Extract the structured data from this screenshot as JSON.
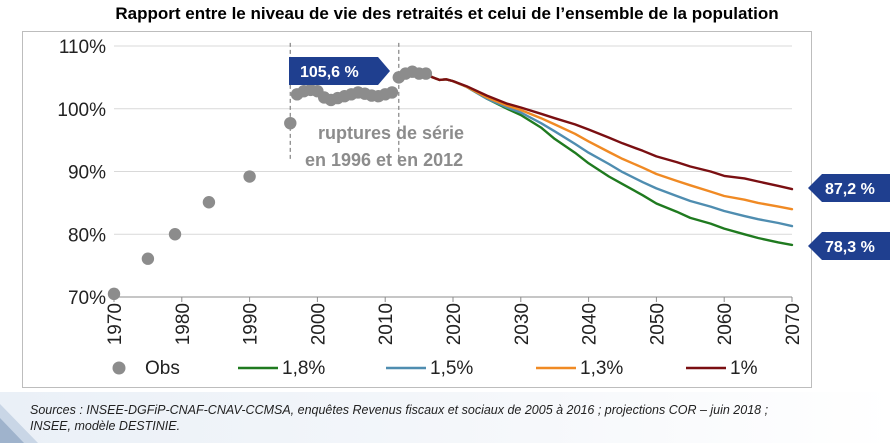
{
  "title": "Rapport entre le niveau de vie des retraités et celui de l’ensemble de la population",
  "source": "Sources : INSEE-DGFiP-CNAF-CNAV-CCMSA, enquêtes Revenus fiscaux et sociaux de 2005 à 2016 ; projections COR – juin 2018 ; INSEE, modèle DESTINIE.",
  "colors": {
    "obs": "#8c8c8c",
    "s18": "#1f7a1f",
    "s15": "#4f8db0",
    "s13": "#f08a24",
    "s1": "#7a0f12",
    "callout": "#1f3f8f"
  },
  "chart_data": {
    "type": "line",
    "title": "Rapport entre le niveau de vie des retraités et celui de l’ensemble de la population",
    "xlim": [
      1970,
      2070
    ],
    "ylim": [
      70,
      110
    ],
    "y_ticks": [
      70,
      80,
      90,
      100,
      110
    ],
    "y_tick_labels": [
      "70%",
      "80%",
      "90%",
      "100%",
      "110%"
    ],
    "x_ticks": [
      1970,
      1980,
      1990,
      2000,
      2010,
      2020,
      2030,
      2040,
      2050,
      2060,
      2070
    ],
    "x_tick_labels": [
      "1970",
      "1980",
      "1990",
      "2000",
      "2010",
      "2020",
      "2030",
      "2040",
      "2050",
      "2060",
      "2070"
    ],
    "grid": "horizontal",
    "legend_position": "bottom",
    "obs": {
      "name": "Obs",
      "x": [
        1970,
        1975,
        1979,
        1984,
        1990,
        1996,
        1997,
        1998,
        1999,
        2000,
        2001,
        2002,
        2003,
        2004,
        2005,
        2006,
        2007,
        2008,
        2009,
        2010,
        2011,
        2012,
        2013,
        2014,
        2015,
        2016
      ],
      "y": [
        70.5,
        76.1,
        80.0,
        85.1,
        89.2,
        97.7,
        102.3,
        102.8,
        103.0,
        102.8,
        101.8,
        101.4,
        101.7,
        102.0,
        102.3,
        102.6,
        102.4,
        102.1,
        102.0,
        102.3,
        102.6,
        105.0,
        105.6,
        105.9,
        105.6,
        105.6
      ]
    },
    "series": [
      {
        "name": "1,8%",
        "key": "s18",
        "x": [
          2016,
          2017,
          2018,
          2019,
          2020,
          2022,
          2025,
          2028,
          2030,
          2033,
          2035,
          2038,
          2040,
          2043,
          2045,
          2048,
          2050,
          2053,
          2055,
          2058,
          2060,
          2063,
          2065,
          2068,
          2070
        ],
        "y": [
          105.6,
          105.0,
          104.6,
          104.7,
          104.4,
          103.5,
          101.6,
          100.0,
          99.0,
          97.0,
          95.2,
          93.0,
          91.3,
          89.2,
          88.0,
          86.2,
          84.9,
          83.6,
          82.6,
          81.7,
          80.9,
          80.0,
          79.4,
          78.7,
          78.3
        ]
      },
      {
        "name": "1,5%",
        "key": "s15",
        "x": [
          2016,
          2017,
          2018,
          2019,
          2020,
          2022,
          2025,
          2028,
          2030,
          2033,
          2035,
          2038,
          2040,
          2043,
          2045,
          2048,
          2050,
          2053,
          2055,
          2058,
          2060,
          2063,
          2065,
          2068,
          2070
        ],
        "y": [
          105.6,
          105.0,
          104.6,
          104.7,
          104.4,
          103.5,
          101.6,
          100.2,
          99.4,
          97.7,
          96.4,
          94.4,
          93.0,
          91.2,
          89.9,
          88.3,
          87.3,
          86.1,
          85.3,
          84.4,
          83.7,
          82.9,
          82.4,
          81.8,
          81.3
        ]
      },
      {
        "name": "1,3%",
        "key": "s13",
        "x": [
          2016,
          2017,
          2018,
          2019,
          2020,
          2022,
          2025,
          2028,
          2030,
          2033,
          2035,
          2038,
          2040,
          2043,
          2045,
          2048,
          2050,
          2053,
          2055,
          2058,
          2060,
          2063,
          2065,
          2068,
          2070
        ],
        "y": [
          105.6,
          105.0,
          104.6,
          104.7,
          104.4,
          103.5,
          101.8,
          100.5,
          99.8,
          98.5,
          97.5,
          96.0,
          94.8,
          93.1,
          92.0,
          90.6,
          89.6,
          88.5,
          87.8,
          86.8,
          86.1,
          85.5,
          85.0,
          84.4,
          84.0
        ]
      },
      {
        "name": "1%",
        "key": "s1",
        "x": [
          2016,
          2017,
          2018,
          2019,
          2020,
          2022,
          2025,
          2028,
          2030,
          2033,
          2035,
          2038,
          2040,
          2043,
          2045,
          2048,
          2050,
          2053,
          2055,
          2058,
          2060,
          2063,
          2065,
          2068,
          2070
        ],
        "y": [
          105.6,
          105.0,
          104.6,
          104.7,
          104.4,
          103.6,
          102.1,
          100.8,
          100.2,
          99.2,
          98.5,
          97.5,
          96.7,
          95.4,
          94.5,
          93.3,
          92.4,
          91.5,
          90.8,
          90.0,
          89.3,
          88.9,
          88.4,
          87.7,
          87.2
        ]
      }
    ],
    "annotations": {
      "break_lines_x": [
        1996,
        2012
      ],
      "break_label_line1": "ruptures de série",
      "break_label_line2": "en 1996 et en 2012",
      "peak_label": "105,6 %",
      "high_label": "87,2 %",
      "low_label": "78,3 %"
    }
  }
}
